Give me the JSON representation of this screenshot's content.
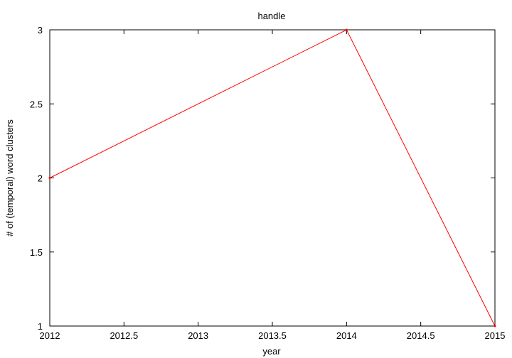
{
  "chart_data": {
    "type": "line",
    "title": "handle",
    "xlabel": "year",
    "ylabel": "# of (temporal) word clusters",
    "xlim": [
      2012,
      2015
    ],
    "ylim": [
      1,
      3
    ],
    "xticks": [
      "2012",
      "2012.5",
      "2013",
      "2013.5",
      "2014",
      "2014.5",
      "2015"
    ],
    "yticks": [
      "1",
      "1.5",
      "2",
      "2.5",
      "3"
    ],
    "grid": false,
    "legend": "none",
    "series": [
      {
        "color": "#ff0000",
        "x": [
          2012,
          2014,
          2015
        ],
        "y": [
          2,
          3,
          1
        ]
      }
    ]
  }
}
